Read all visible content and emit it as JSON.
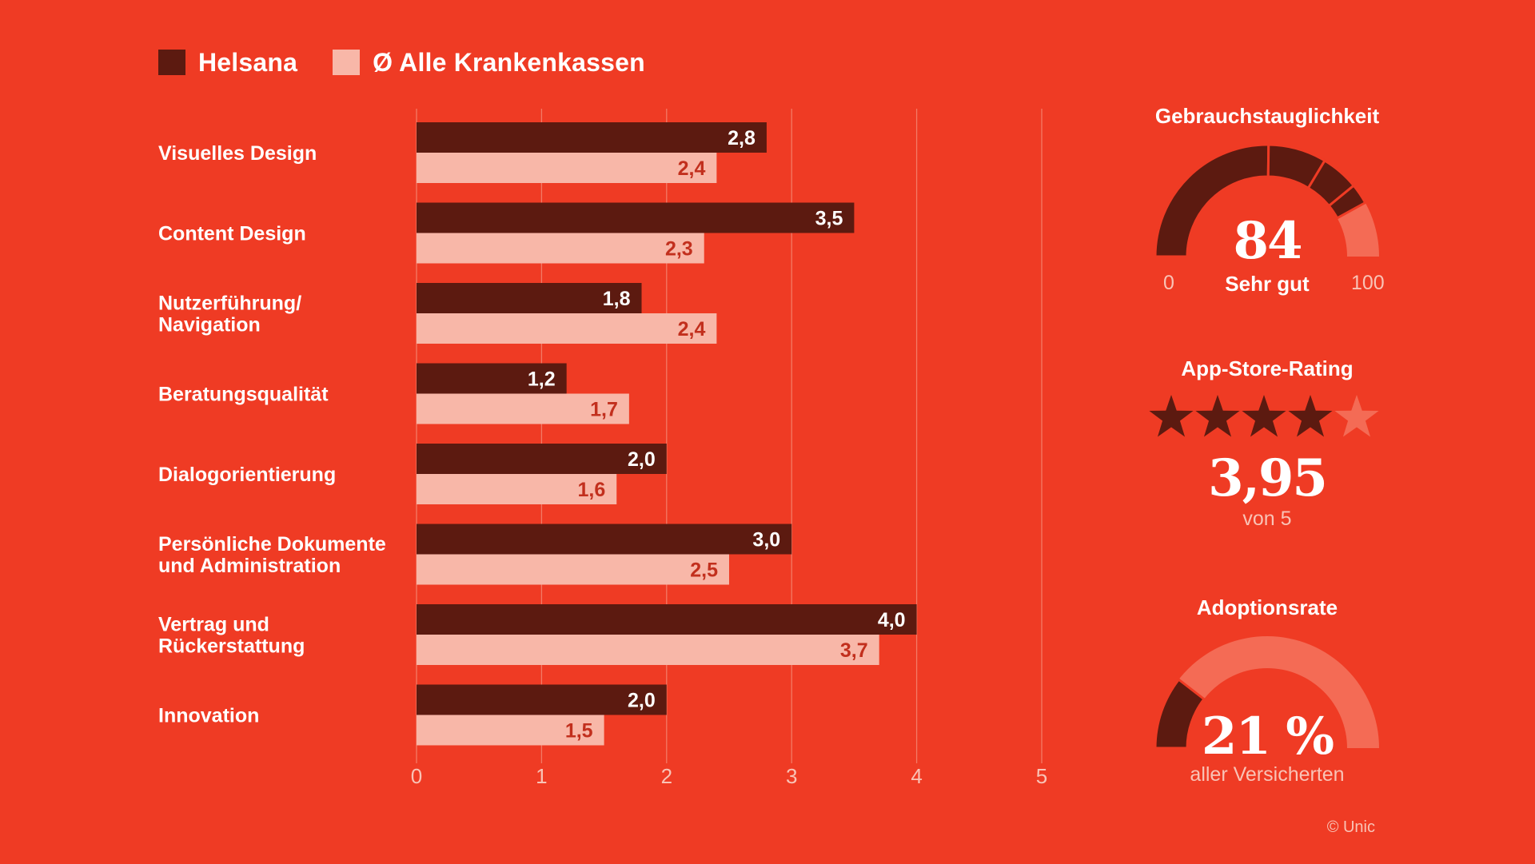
{
  "legend": [
    {
      "label": "Helsana",
      "color": "#5c1a10"
    },
    {
      "label": "Ø Alle Krankenkassen",
      "color": "#f8b7a8"
    }
  ],
  "chart_data": {
    "type": "bar",
    "orientation": "horizontal",
    "categories": [
      [
        "Visuelles Design"
      ],
      [
        "Content Design"
      ],
      [
        "Nutzerführung/",
        "Navigation"
      ],
      [
        "Beratungsqualität"
      ],
      [
        "Dialogorientierung"
      ],
      [
        "Persönliche Dokumente",
        "und Administration"
      ],
      [
        "Vertrag und",
        "Rückerstattung"
      ],
      [
        "Innovation"
      ]
    ],
    "series": [
      {
        "name": "Helsana",
        "color": "#5c1a10",
        "label_color": "#ffffff",
        "values": [
          2.8,
          3.5,
          1.8,
          1.2,
          2.0,
          3.0,
          4.0,
          2.0
        ],
        "labels": [
          "2,8",
          "3,5",
          "1,8",
          "1,2",
          "2,0",
          "3,0",
          "4,0",
          "2,0"
        ]
      },
      {
        "name": "Ø Alle Krankenkassen",
        "color": "#f8b7a8",
        "label_color": "#c22f1d",
        "values": [
          2.4,
          2.3,
          2.4,
          1.7,
          1.6,
          2.5,
          3.7,
          1.5
        ],
        "labels": [
          "2,4",
          "2,3",
          "2,4",
          "1,7",
          "1,6",
          "2,5",
          "3,7",
          "1,5"
        ]
      }
    ],
    "xlim": [
      0,
      5
    ],
    "xticks": [
      "0",
      "1",
      "2",
      "3",
      "4",
      "5"
    ],
    "grid": true,
    "legend_position": "top-left"
  },
  "usability": {
    "title": "Gebrauchstauglichkeit",
    "value": "84",
    "value_num": 84,
    "rating": "Sehr gut",
    "min": "0",
    "max": "100"
  },
  "app_rating": {
    "title": "App-Store-Rating",
    "value": "3,95",
    "value_num": 3.95,
    "stars_filled": 4,
    "stars_total": 5,
    "sub": "von 5"
  },
  "adoption": {
    "title": "Adoptionsrate",
    "value": "21 %",
    "value_num": 21,
    "sub": "aller Versicherten"
  },
  "copyright": "© Unic",
  "colors": {
    "background": "#ef3b24",
    "dark": "#5c1a10",
    "light": "#f8b7a8",
    "track": "#f46b55",
    "grid": "#f37a65"
  }
}
